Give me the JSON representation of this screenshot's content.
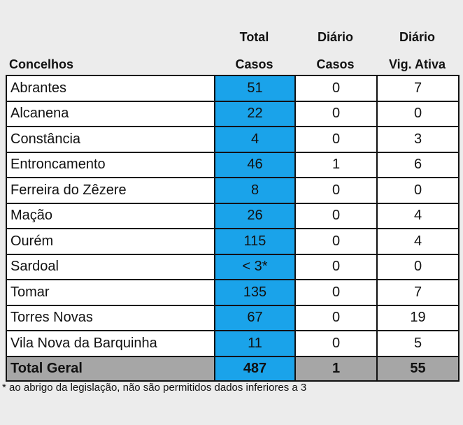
{
  "header": {
    "col_name": "Concelhos",
    "col_total_line1": "Total",
    "col_total_line2": "Casos",
    "col_diario_casos_line1": "Diário",
    "col_diario_casos_line2": "Casos",
    "col_diario_vig_line1": "Diário",
    "col_diario_vig_line2": "Vig. Ativa"
  },
  "rows": [
    {
      "name": "Abrantes",
      "total": "51",
      "diario_casos": "0",
      "diario_vig": "7"
    },
    {
      "name": "Alcanena",
      "total": "22",
      "diario_casos": "0",
      "diario_vig": "0"
    },
    {
      "name": "Constância",
      "total": "4",
      "diario_casos": "0",
      "diario_vig": "3"
    },
    {
      "name": "Entroncamento",
      "total": "46",
      "diario_casos": "1",
      "diario_vig": "6"
    },
    {
      "name": "Ferreira do Zêzere",
      "total": "8",
      "diario_casos": "0",
      "diario_vig": "0"
    },
    {
      "name": "Mação",
      "total": "26",
      "diario_casos": "0",
      "diario_vig": "4"
    },
    {
      "name": "Ourém",
      "total": "115",
      "diario_casos": "0",
      "diario_vig": "4"
    },
    {
      "name": "Sardoal",
      "total": "< 3*",
      "diario_casos": "0",
      "diario_vig": "0"
    },
    {
      "name": "Tomar",
      "total": "135",
      "diario_casos": "0",
      "diario_vig": "7"
    },
    {
      "name": "Torres Novas",
      "total": "67",
      "diario_casos": "0",
      "diario_vig": "19"
    },
    {
      "name": "Vila Nova da Barquinha",
      "total": "11",
      "diario_casos": "0",
      "diario_vig": "5"
    }
  ],
  "total_row": {
    "name": "Total Geral",
    "total": "487",
    "diario_casos": "1",
    "diario_vig": "55"
  },
  "footnote": "* ao abrigo da legislação, não são permitidos dados inferiores a 3",
  "colors": {
    "total_column": "#1aa3ea",
    "total_row": "#a6a6a6",
    "background": "#ececec"
  }
}
